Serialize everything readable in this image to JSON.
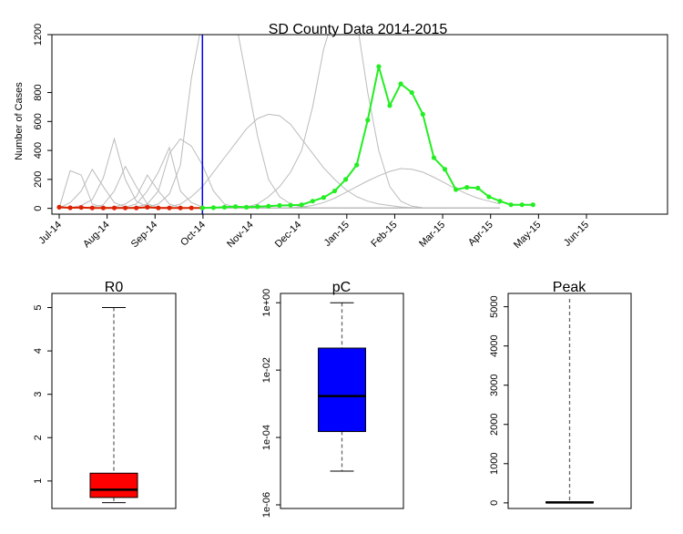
{
  "chart_data": [
    {
      "type": "line",
      "title": "SD County Data 2014-2015",
      "xlabel": "",
      "ylabel": "Number of Cases",
      "ylim": [
        0,
        1200
      ],
      "grid": false,
      "x_tick_labels": [
        "Jul-14",
        "Aug-14",
        "Sep-14",
        "Oct-14",
        "Nov-14",
        "Dec-14",
        "Jan-15",
        "Feb-15",
        "Mar-15",
        "Apr-15",
        "May-15",
        "Jun-15"
      ],
      "y_ticks": [
        0,
        200,
        400,
        600,
        800,
        1200
      ],
      "vertical_marker_week": 13,
      "colors": {
        "observed_fit": "#dd2200",
        "observed_forecast": "#22ee22",
        "simulations": "#bbbbbb",
        "marker_line": "#0000ee"
      },
      "series": [
        {
          "weeks": [
            0,
            1,
            2,
            3,
            4,
            5,
            6,
            7,
            8,
            9,
            10,
            11,
            12,
            13
          ],
          "values": [
            8,
            4,
            6,
            3,
            3,
            3,
            3,
            3,
            8,
            3,
            3,
            3,
            3,
            3
          ]
        },
        {
          "weeks": [
            13,
            14,
            15,
            16,
            17,
            18,
            19,
            20,
            21,
            22,
            23,
            24,
            25,
            26,
            27,
            28,
            29,
            30,
            31,
            32,
            33,
            34,
            35,
            36,
            37,
            38,
            39,
            40,
            41,
            42,
            43
          ],
          "values": [
            3,
            5,
            8,
            12,
            8,
            12,
            15,
            20,
            22,
            25,
            50,
            75,
            120,
            200,
            300,
            610,
            980,
            710,
            860,
            800,
            650,
            350,
            270,
            130,
            145,
            140,
            80,
            50,
            25,
            25,
            25
          ]
        }
      ],
      "simulations": [
        [
          3,
          260,
          230,
          30,
          8,
          4,
          3,
          3,
          3,
          3,
          3,
          3,
          3,
          3,
          3,
          3,
          3,
          3,
          3,
          3,
          3,
          3,
          3,
          3,
          3,
          3,
          3,
          3,
          3,
          3,
          3,
          3,
          3,
          3,
          3,
          3,
          3,
          3,
          3,
          3,
          3
        ],
        [
          3,
          40,
          120,
          270,
          150,
          40,
          10,
          3,
          3,
          3,
          3,
          3,
          3,
          3,
          3,
          3,
          3,
          3,
          3,
          3,
          3,
          3,
          3,
          3,
          3,
          3,
          3,
          3,
          3,
          3,
          3,
          3,
          3,
          3,
          3,
          3,
          3,
          3,
          3,
          3,
          3
        ],
        [
          3,
          5,
          20,
          60,
          210,
          480,
          200,
          50,
          10,
          3,
          3,
          3,
          3,
          3,
          3,
          3,
          3,
          3,
          3,
          3,
          3,
          3,
          3,
          3,
          3,
          3,
          3,
          3,
          3,
          3,
          3,
          3,
          3,
          3,
          3,
          3,
          3,
          3,
          3,
          3,
          3
        ],
        [
          3,
          3,
          5,
          10,
          25,
          120,
          290,
          150,
          30,
          8,
          3,
          3,
          3,
          3,
          3,
          3,
          3,
          3,
          3,
          3,
          3,
          3,
          3,
          3,
          3,
          3,
          3,
          3,
          3,
          3,
          3,
          3,
          3,
          3,
          3,
          3,
          3,
          3,
          3,
          3,
          3
        ],
        [
          3,
          3,
          3,
          3,
          5,
          10,
          30,
          80,
          230,
          120,
          30,
          5,
          3,
          3,
          3,
          3,
          3,
          3,
          3,
          3,
          3,
          3,
          3,
          3,
          3,
          3,
          3,
          3,
          3,
          3,
          3,
          3,
          3,
          3,
          3,
          3,
          3,
          3,
          3,
          3,
          3
        ],
        [
          3,
          3,
          3,
          3,
          3,
          5,
          10,
          30,
          120,
          250,
          420,
          120,
          40,
          10,
          3,
          3,
          3,
          3,
          3,
          3,
          3,
          3,
          3,
          3,
          3,
          3,
          3,
          3,
          3,
          3,
          3,
          3,
          3,
          3,
          3,
          3,
          3,
          3,
          3,
          3,
          3
        ],
        [
          3,
          3,
          3,
          3,
          3,
          3,
          5,
          10,
          30,
          120,
          380,
          480,
          430,
          300,
          120,
          30,
          8,
          3,
          3,
          3,
          3,
          3,
          3,
          3,
          3,
          3,
          3,
          3,
          3,
          3,
          3,
          3,
          3,
          3,
          3,
          3,
          3,
          3,
          3,
          3,
          3
        ],
        [
          3,
          3,
          3,
          3,
          3,
          3,
          3,
          5,
          10,
          30,
          100,
          300,
          900,
          1300,
          1500,
          1500,
          1300,
          900,
          500,
          200,
          80,
          30,
          10,
          3,
          3,
          3,
          3,
          3,
          3,
          3,
          3,
          3,
          3,
          3,
          3,
          3,
          3,
          3,
          3,
          3,
          3
        ],
        [
          3,
          3,
          3,
          3,
          3,
          3,
          3,
          3,
          3,
          5,
          10,
          30,
          80,
          150,
          250,
          350,
          450,
          550,
          620,
          650,
          640,
          580,
          480,
          380,
          280,
          200,
          130,
          80,
          50,
          30,
          20,
          10,
          5,
          3,
          3,
          3,
          3,
          3,
          3,
          3,
          3
        ],
        [
          3,
          3,
          3,
          3,
          3,
          3,
          3,
          3,
          3,
          3,
          3,
          3,
          3,
          3,
          3,
          3,
          3,
          10,
          30,
          80,
          150,
          250,
          400,
          700,
          1100,
          1500,
          1500,
          1300,
          800,
          400,
          150,
          50,
          15,
          5,
          3,
          3,
          3,
          3,
          3,
          3,
          3
        ],
        [
          3,
          3,
          3,
          3,
          3,
          3,
          3,
          3,
          3,
          3,
          3,
          3,
          3,
          3,
          3,
          3,
          3,
          3,
          3,
          3,
          3,
          5,
          10,
          20,
          40,
          70,
          110,
          150,
          190,
          225,
          255,
          275,
          270,
          250,
          215,
          175,
          135,
          100,
          70,
          50,
          30
        ]
      ]
    },
    {
      "type": "boxplot",
      "title": "R0",
      "yscale": "linear",
      "ylim": [
        0.45,
        5.2
      ],
      "y_ticks": [
        1,
        2,
        3,
        4,
        5
      ],
      "y_tick_labels": [
        "1",
        "2",
        "3",
        "4",
        "5"
      ],
      "whisker_low": 0.5,
      "q1": 0.62,
      "median": 0.8,
      "q3": 1.18,
      "whisker_high": 5.0,
      "color": "#ff0000"
    },
    {
      "type": "boxplot",
      "title": "pC",
      "yscale": "log10",
      "ylim": [
        1e-06,
        1.3
      ],
      "y_ticks": [
        1e-06,
        0.0001,
        0.01,
        1
      ],
      "y_tick_labels": [
        "1e-06",
        "1e-04",
        "1e-02",
        "1e+00"
      ],
      "whisker_low": 1e-05,
      "q1": 0.00015,
      "median": 0.0017,
      "q3": 0.045,
      "whisker_high": 1.0,
      "color": "#0000ff"
    },
    {
      "type": "boxplot",
      "title": "Peak",
      "yscale": "linear",
      "ylim": [
        -50,
        5200
      ],
      "y_ticks": [
        0,
        1000,
        2000,
        3000,
        4000,
        5000
      ],
      "y_tick_labels": [
        "0",
        "1000",
        "2000",
        "3000",
        "4000",
        "5000"
      ],
      "whisker_low": 0,
      "q1": 5,
      "median": 10,
      "q3": 25,
      "whisker_high": 5200,
      "color": "#ffffff"
    }
  ]
}
